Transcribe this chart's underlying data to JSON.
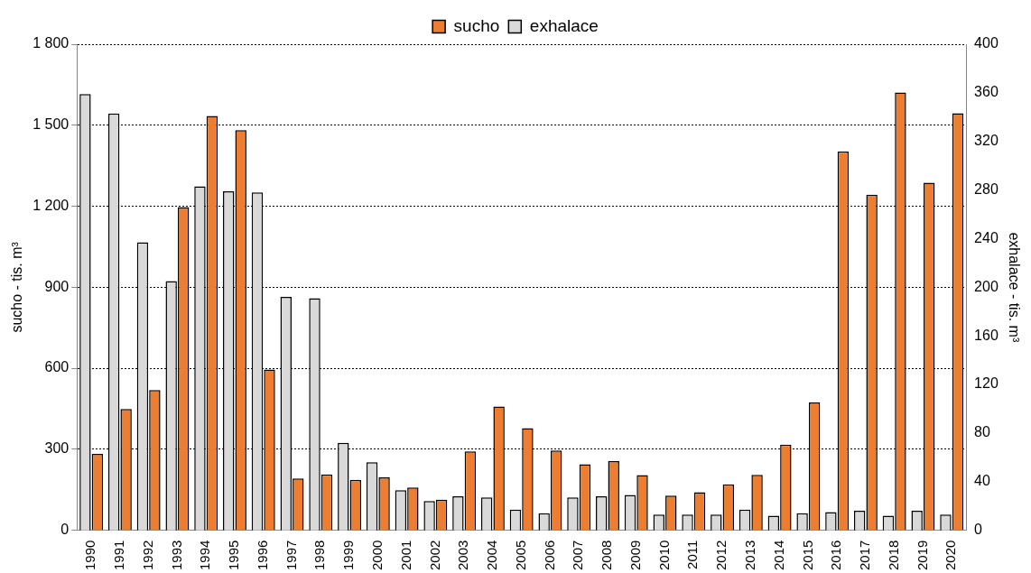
{
  "chart_data": {
    "type": "bar",
    "ylabel": "sucho - tis. m³",
    "y2label": "exhalace - tis. m³",
    "categories": [
      "1990",
      "1991",
      "1992",
      "1993",
      "1994",
      "1995",
      "1996",
      "1997",
      "1998",
      "1999",
      "2000",
      "2001",
      "2002",
      "2003",
      "2004",
      "2005",
      "2006",
      "2007",
      "2008",
      "2009",
      "2010",
      "2011",
      "2012",
      "2013",
      "2014",
      "2015",
      "2016",
      "2017",
      "2018",
      "2019",
      "2020"
    ],
    "series": [
      {
        "name": "sucho",
        "color": "#ed7d31",
        "values": [
          283,
          449,
          519,
          1197,
          1534,
          1482,
          595,
          192,
          207,
          187,
          196,
          158,
          113,
          292,
          458,
          378,
          295,
          244,
          256,
          204,
          128,
          141,
          170,
          205,
          317,
          473,
          1403,
          1243,
          1621,
          1287,
          1544
        ]
      },
      {
        "name": "exhalace",
        "color": "#d9d9d9",
        "axis": "y2",
        "values": [
          359,
          343,
          237,
          205,
          283,
          279,
          278,
          192,
          191,
          72,
          56,
          33,
          24,
          28,
          27,
          17,
          14,
          27,
          28,
          29,
          13,
          13,
          13,
          17,
          12,
          14,
          15,
          16,
          12,
          16,
          13
        ]
      }
    ],
    "ylim": [
      0,
      1800
    ],
    "yticks": [
      0,
      300,
      600,
      900,
      {
        "value": 1200,
        "label": "1 200"
      },
      {
        "value": 1500,
        "label": "1 500"
      },
      {
        "value": 1800,
        "label": "1 800"
      }
    ],
    "y2lim": [
      0,
      400
    ],
    "y2ticks": [
      0,
      40,
      80,
      120,
      160,
      200,
      240,
      280,
      320,
      360,
      400
    ],
    "grid": "y",
    "legend": "top"
  }
}
